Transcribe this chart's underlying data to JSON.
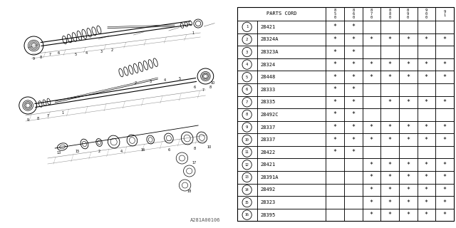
{
  "fig_code": "A281A00106",
  "rows": [
    {
      "num": 1,
      "part": "28421",
      "marks": [
        1,
        1,
        0,
        0,
        0,
        0,
        0
      ]
    },
    {
      "num": 2,
      "part": "28324A",
      "marks": [
        1,
        1,
        1,
        1,
        1,
        1,
        1
      ]
    },
    {
      "num": 3,
      "part": "28323A",
      "marks": [
        1,
        1,
        0,
        0,
        0,
        0,
        0
      ]
    },
    {
      "num": 4,
      "part": "28324",
      "marks": [
        1,
        1,
        1,
        1,
        1,
        1,
        1
      ]
    },
    {
      "num": 5,
      "part": "28448",
      "marks": [
        1,
        1,
        1,
        1,
        1,
        1,
        1
      ]
    },
    {
      "num": 6,
      "part": "28333",
      "marks": [
        1,
        1,
        0,
        0,
        0,
        0,
        0
      ]
    },
    {
      "num": 7,
      "part": "28335",
      "marks": [
        1,
        1,
        0,
        1,
        1,
        1,
        1
      ]
    },
    {
      "num": 8,
      "part": "28492C",
      "marks": [
        1,
        1,
        0,
        0,
        0,
        0,
        0
      ]
    },
    {
      "num": 9,
      "part": "28337",
      "marks": [
        1,
        1,
        1,
        1,
        1,
        1,
        1
      ]
    },
    {
      "num": 10,
      "part": "28337",
      "marks": [
        1,
        1,
        1,
        1,
        1,
        1,
        1
      ]
    },
    {
      "num": 11,
      "part": "28422",
      "marks": [
        1,
        1,
        0,
        0,
        0,
        0,
        0
      ]
    },
    {
      "num": 12,
      "part": "28421",
      "marks": [
        0,
        0,
        1,
        1,
        1,
        1,
        1
      ]
    },
    {
      "num": 13,
      "part": "28391A",
      "marks": [
        0,
        0,
        1,
        1,
        1,
        1,
        1
      ]
    },
    {
      "num": 14,
      "part": "28492",
      "marks": [
        0,
        0,
        1,
        1,
        1,
        1,
        1
      ]
    },
    {
      "num": 15,
      "part": "28323",
      "marks": [
        0,
        0,
        1,
        1,
        1,
        1,
        1
      ]
    },
    {
      "num": 16,
      "part": "28395",
      "marks": [
        0,
        0,
        1,
        1,
        1,
        1,
        1
      ]
    }
  ],
  "year_labels": [
    "8\n5\n0",
    "8\n6\n0",
    "8\n7\n0",
    "8\n8\n0",
    "8\n9\n0",
    "9\n0\n0",
    "9\n1"
  ],
  "bg_color": "#ffffff",
  "line_color": "#000000"
}
